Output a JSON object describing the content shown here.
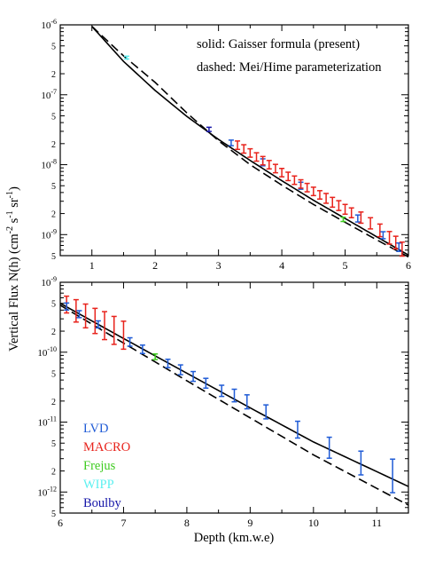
{
  "figure": {
    "ylabel_main": "Vertical Flux N(h) (cm",
    "ylabel_sup1": "-2",
    "ylabel_mid1": " s",
    "ylabel_sup2": "-1",
    "ylabel_mid2": " sr",
    "ylabel_sup3": "-1",
    "ylabel_end": ")",
    "xlabel": "Depth (km.w.e)",
    "annotation_solid": "solid: Gaisser formula (present)",
    "annotation_dashed": "dashed: Mei/Hime parameterization"
  },
  "colors": {
    "LVD": "#1f5bd6",
    "MACRO": "#e8231c",
    "Frejus": "#3ecb1f",
    "WIPP": "#5cf0f0",
    "Boulby": "#1515a8",
    "curve": "#000000"
  },
  "legend": [
    {
      "key": "LVD",
      "label": "LVD"
    },
    {
      "key": "MACRO",
      "label": "MACRO"
    },
    {
      "key": "Frejus",
      "label": "Frejus"
    },
    {
      "key": "WIPP",
      "label": "WIPP"
    },
    {
      "key": "Boulby",
      "label": "Boulby"
    }
  ],
  "chart_data": [
    {
      "type": "line",
      "xlim": [
        0.5,
        6
      ],
      "ylim": [
        5e-10,
        1e-06
      ],
      "yscale": "log",
      "xticks": [
        "1",
        "2",
        "3",
        "4",
        "5",
        "6"
      ],
      "yticks": [
        {
          "label": "5",
          "exp": ""
        },
        {
          "label": "10",
          "exp": "-9"
        },
        {
          "label": "2",
          "exp": ""
        },
        {
          "label": "5",
          "exp": ""
        },
        {
          "label": "10",
          "exp": "-8"
        },
        {
          "label": "2",
          "exp": ""
        },
        {
          "label": "5",
          "exp": ""
        },
        {
          "label": "10",
          "exp": "-7"
        },
        {
          "label": "2",
          "exp": ""
        },
        {
          "label": "5",
          "exp": ""
        },
        {
          "label": "10",
          "exp": "-6"
        }
      ],
      "ytick_values": [
        5e-10,
        1e-09,
        2e-09,
        5e-09,
        1e-08,
        2e-08,
        5e-08,
        1e-07,
        2e-07,
        5e-07,
        1e-06
      ],
      "series": [
        {
          "style": "solid",
          "x": [
            1.0,
            1.5,
            2.0,
            2.5,
            3.0,
            3.5,
            4.0,
            4.5,
            5.0,
            5.5,
            6.0
          ],
          "y": [
            9.5e-07,
            3e-07,
            1.15e-07,
            4.9e-08,
            2.3e-08,
            1.15e-08,
            5.9e-09,
            3.1e-09,
            1.7e-09,
            9.3e-10,
            5.1e-10
          ]
        },
        {
          "style": "dashed",
          "x": [
            1.0,
            1.5,
            2.0,
            2.5,
            3.0,
            3.5,
            4.0,
            4.5,
            5.0,
            5.5,
            6.0
          ],
          "y": [
            9.5e-07,
            3.6e-07,
            1.5e-07,
            5.5e-08,
            2.2e-08,
            1e-08,
            5.1e-09,
            2.7e-09,
            1.5e-09,
            8.4e-10,
            4.8e-10
          ]
        }
      ],
      "points": [
        {
          "key": "WIPP",
          "x": 1.55,
          "y": 3.4e-07,
          "err": 0.02
        },
        {
          "key": "Boulby",
          "x": 2.85,
          "y": 3.2e-08,
          "err": 0.03
        },
        {
          "key": "LVD",
          "x": 3.2,
          "y": 2.05e-08,
          "err": 0.04
        },
        {
          "key": "MACRO",
          "x": 3.3,
          "y": 1.9e-08,
          "err": 0.06
        },
        {
          "key": "MACRO",
          "x": 3.4,
          "y": 1.68e-08,
          "err": 0.06
        },
        {
          "key": "MACRO",
          "x": 3.5,
          "y": 1.47e-08,
          "err": 0.06
        },
        {
          "key": "MACRO",
          "x": 3.6,
          "y": 1.29e-08,
          "err": 0.06
        },
        {
          "key": "LVD",
          "x": 3.7,
          "y": 1.08e-08,
          "err": 0.05
        },
        {
          "key": "MACRO",
          "x": 3.7,
          "y": 1.14e-08,
          "err": 0.06
        },
        {
          "key": "MACRO",
          "x": 3.8,
          "y": 1e-08,
          "err": 0.06
        },
        {
          "key": "MACRO",
          "x": 3.9,
          "y": 8.8e-09,
          "err": 0.06
        },
        {
          "key": "MACRO",
          "x": 4.0,
          "y": 7.7e-09,
          "err": 0.06
        },
        {
          "key": "MACRO",
          "x": 4.1,
          "y": 6.8e-09,
          "err": 0.06
        },
        {
          "key": "MACRO",
          "x": 4.2,
          "y": 6e-09,
          "err": 0.06
        },
        {
          "key": "LVD",
          "x": 4.3,
          "y": 5e-09,
          "err": 0.05
        },
        {
          "key": "MACRO",
          "x": 4.3,
          "y": 5.3e-09,
          "err": 0.06
        },
        {
          "key": "MACRO",
          "x": 4.4,
          "y": 4.7e-09,
          "err": 0.06
        },
        {
          "key": "MACRO",
          "x": 4.5,
          "y": 4.15e-09,
          "err": 0.06
        },
        {
          "key": "MACRO",
          "x": 4.6,
          "y": 3.7e-09,
          "err": 0.06
        },
        {
          "key": "MACRO",
          "x": 4.7,
          "y": 3.3e-09,
          "err": 0.07
        },
        {
          "key": "MACRO",
          "x": 4.8,
          "y": 2.9e-09,
          "err": 0.07
        },
        {
          "key": "MACRO",
          "x": 4.9,
          "y": 2.6e-09,
          "err": 0.07
        },
        {
          "key": "Frejus",
          "x": 4.97,
          "y": 1.65e-09,
          "err": 0.03
        },
        {
          "key": "MACRO",
          "x": 5.0,
          "y": 2.3e-09,
          "err": 0.07
        },
        {
          "key": "MACRO",
          "x": 5.1,
          "y": 2.05e-09,
          "err": 0.07
        },
        {
          "key": "LVD",
          "x": 5.2,
          "y": 1.7e-09,
          "err": 0.05
        },
        {
          "key": "MACRO",
          "x": 5.25,
          "y": 1.75e-09,
          "err": 0.08
        },
        {
          "key": "MACRO",
          "x": 5.4,
          "y": 1.45e-09,
          "err": 0.08
        },
        {
          "key": "MACRO",
          "x": 5.55,
          "y": 1.15e-09,
          "err": 0.09
        },
        {
          "key": "LVD",
          "x": 5.6,
          "y": 9.8e-10,
          "err": 0.05
        },
        {
          "key": "MACRO",
          "x": 5.7,
          "y": 9e-10,
          "err": 0.09
        },
        {
          "key": "MACRO",
          "x": 5.8,
          "y": 7.7e-10,
          "err": 0.09
        },
        {
          "key": "LVD",
          "x": 5.85,
          "y": 6.6e-10,
          "err": 0.06
        },
        {
          "key": "MACRO",
          "x": 5.9,
          "y": 6.2e-10,
          "err": 0.1
        }
      ]
    },
    {
      "type": "line",
      "xlim": [
        6,
        11.5
      ],
      "ylim": [
        5e-13,
        1e-09
      ],
      "yscale": "log",
      "xticks": [
        "6",
        "7",
        "8",
        "9",
        "10",
        "11"
      ],
      "yticks": [
        {
          "label": "5",
          "exp": ""
        },
        {
          "label": "10",
          "exp": "-12"
        },
        {
          "label": "2",
          "exp": ""
        },
        {
          "label": "5",
          "exp": ""
        },
        {
          "label": "10",
          "exp": "-11"
        },
        {
          "label": "2",
          "exp": ""
        },
        {
          "label": "5",
          "exp": ""
        },
        {
          "label": "10",
          "exp": "-10"
        },
        {
          "label": "2",
          "exp": ""
        },
        {
          "label": "5",
          "exp": ""
        },
        {
          "label": "10",
          "exp": "-9"
        }
      ],
      "ytick_values": [
        5e-13,
        1e-12,
        2e-12,
        5e-12,
        1e-11,
        2e-11,
        5e-11,
        1e-10,
        2e-10,
        5e-10,
        1e-09
      ],
      "series": [
        {
          "style": "solid",
          "x": [
            6.0,
            7.0,
            8.0,
            9.0,
            10.0,
            11.5
          ],
          "y": [
            5e-10,
            1.57e-10,
            5e-11,
            1.6e-11,
            5.2e-12,
            1.2e-12
          ]
        },
        {
          "style": "dashed",
          "x": [
            6.0,
            7.0,
            8.0,
            9.0,
            10.0,
            11.5
          ],
          "y": [
            4.7e-10,
            1.35e-10,
            3.9e-11,
            1.15e-11,
            3.4e-12,
            6.5e-13
          ]
        }
      ],
      "points": [
        {
          "key": "MACRO",
          "x": 6.1,
          "y": 4.8e-10,
          "err": 0.12
        },
        {
          "key": "MACRO",
          "x": 6.25,
          "y": 3.9e-10,
          "err": 0.16
        },
        {
          "key": "MACRO",
          "x": 6.4,
          "y": 3.3e-10,
          "err": 0.17
        },
        {
          "key": "MACRO",
          "x": 6.55,
          "y": 2.8e-10,
          "err": 0.18
        },
        {
          "key": "MACRO",
          "x": 6.7,
          "y": 2.4e-10,
          "err": 0.2
        },
        {
          "key": "MACRO",
          "x": 6.85,
          "y": 2.05e-10,
          "err": 0.2
        },
        {
          "key": "MACRO",
          "x": 7.0,
          "y": 1.75e-10,
          "err": 0.2
        },
        {
          "key": "LVD",
          "x": 6.1,
          "y": 4.5e-10,
          "err": 0.05
        },
        {
          "key": "LVD",
          "x": 6.3,
          "y": 3.5e-10,
          "err": 0.05
        },
        {
          "key": "LVD",
          "x": 6.6,
          "y": 2.5e-10,
          "err": 0.05
        },
        {
          "key": "LVD",
          "x": 7.1,
          "y": 1.4e-10,
          "err": 0.06
        },
        {
          "key": "LVD",
          "x": 7.3,
          "y": 1.1e-10,
          "err": 0.06
        },
        {
          "key": "Frejus",
          "x": 7.5,
          "y": 8.6e-11,
          "err": 0.04
        },
        {
          "key": "LVD",
          "x": 7.7,
          "y": 6.9e-11,
          "err": 0.06
        },
        {
          "key": "LVD",
          "x": 7.9,
          "y": 5.6e-11,
          "err": 0.07
        },
        {
          "key": "LVD",
          "x": 8.1,
          "y": 4.5e-11,
          "err": 0.07
        },
        {
          "key": "LVD",
          "x": 8.3,
          "y": 3.6e-11,
          "err": 0.07
        },
        {
          "key": "LVD",
          "x": 8.55,
          "y": 2.8e-11,
          "err": 0.08
        },
        {
          "key": "LVD",
          "x": 8.75,
          "y": 2.4e-11,
          "err": 0.09
        },
        {
          "key": "LVD",
          "x": 8.95,
          "y": 1.95e-11,
          "err": 0.1
        },
        {
          "key": "LVD",
          "x": 9.25,
          "y": 1.4e-11,
          "err": 0.1
        },
        {
          "key": "LVD",
          "x": 9.75,
          "y": 7.8e-12,
          "err": 0.12
        },
        {
          "key": "LVD",
          "x": 10.25,
          "y": 4.3e-12,
          "err": 0.15
        },
        {
          "key": "LVD",
          "x": 10.75,
          "y": 2.6e-12,
          "err": 0.17
        },
        {
          "key": "LVD",
          "x": 11.25,
          "y": 1.7e-12,
          "err": 0.24
        }
      ]
    }
  ]
}
